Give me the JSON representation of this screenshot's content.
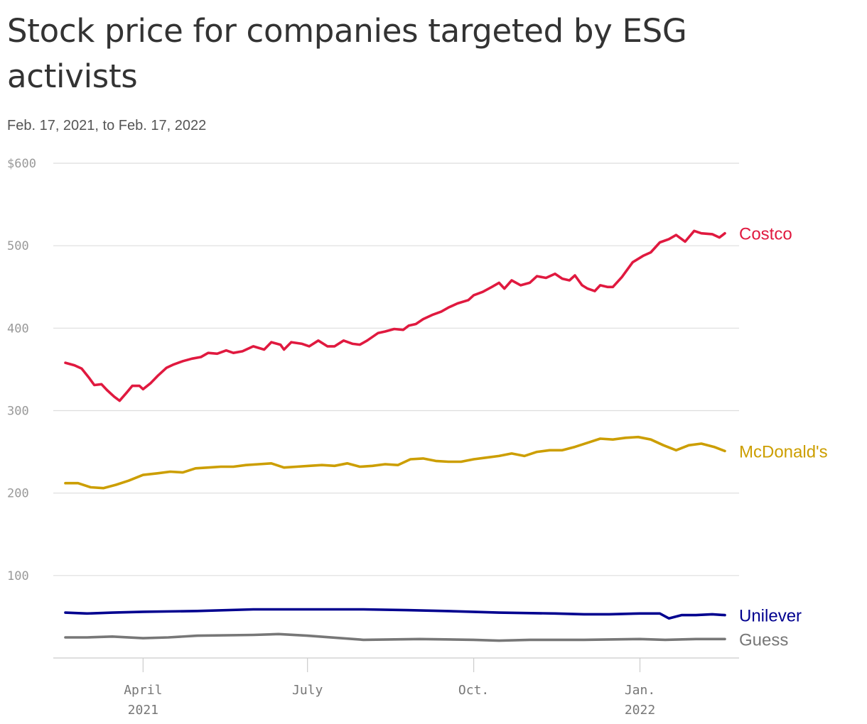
{
  "title": "Stock price for companies targeted by ESG activists",
  "subtitle": "Feb. 17, 2021, to Feb. 17, 2022",
  "chart_data": {
    "type": "line",
    "title": "Stock price for companies targeted by ESG activists",
    "subtitle": "Feb. 17, 2021, to Feb. 17, 2022",
    "xlim": [
      "2021-02-17",
      "2022-02-17"
    ],
    "ylim": [
      0,
      600
    ],
    "y_ticks": [
      {
        "value": 600,
        "label": "$600"
      },
      {
        "value": 500,
        "label": "500"
      },
      {
        "value": 400,
        "label": "400"
      },
      {
        "value": 300,
        "label": "300"
      },
      {
        "value": 200,
        "label": "200"
      },
      {
        "value": 100,
        "label": "100"
      }
    ],
    "x_ticks": [
      {
        "date": "2021-04-01",
        "line1": "April",
        "line2": "2021"
      },
      {
        "date": "2021-07-01",
        "line1": "July",
        "line2": ""
      },
      {
        "date": "2021-10-01",
        "line1": "Oct.",
        "line2": ""
      },
      {
        "date": "2022-01-01",
        "line1": "Jan.",
        "line2": "2022"
      }
    ],
    "grid": true,
    "legend": "direct labels at right end of lines",
    "series": [
      {
        "name": "Costco",
        "color": "#e0193f",
        "points": [
          [
            "2021-02-17",
            358
          ],
          [
            "2021-02-22",
            355
          ],
          [
            "2021-02-26",
            351
          ],
          [
            "2021-03-02",
            340
          ],
          [
            "2021-03-05",
            331
          ],
          [
            "2021-03-09",
            332
          ],
          [
            "2021-03-12",
            325
          ],
          [
            "2021-03-16",
            317
          ],
          [
            "2021-03-19",
            312
          ],
          [
            "2021-03-23",
            322
          ],
          [
            "2021-03-26",
            330
          ],
          [
            "2021-03-30",
            330
          ],
          [
            "2021-04-01",
            326
          ],
          [
            "2021-04-05",
            333
          ],
          [
            "2021-04-09",
            342
          ],
          [
            "2021-04-14",
            352
          ],
          [
            "2021-04-18",
            356
          ],
          [
            "2021-04-23",
            360
          ],
          [
            "2021-04-28",
            363
          ],
          [
            "2021-05-03",
            365
          ],
          [
            "2021-05-07",
            370
          ],
          [
            "2021-05-12",
            369
          ],
          [
            "2021-05-17",
            373
          ],
          [
            "2021-05-21",
            370
          ],
          [
            "2021-05-26",
            372
          ],
          [
            "2021-06-01",
            378
          ],
          [
            "2021-06-07",
            374
          ],
          [
            "2021-06-11",
            383
          ],
          [
            "2021-06-16",
            380
          ],
          [
            "2021-06-18",
            374
          ],
          [
            "2021-06-22",
            383
          ],
          [
            "2021-06-28",
            381
          ],
          [
            "2021-07-02",
            378
          ],
          [
            "2021-07-07",
            385
          ],
          [
            "2021-07-12",
            378
          ],
          [
            "2021-07-16",
            378
          ],
          [
            "2021-07-21",
            385
          ],
          [
            "2021-07-26",
            381
          ],
          [
            "2021-07-30",
            380
          ],
          [
            "2021-08-03",
            385
          ],
          [
            "2021-08-09",
            394
          ],
          [
            "2021-08-13",
            396
          ],
          [
            "2021-08-18",
            399
          ],
          [
            "2021-08-23",
            398
          ],
          [
            "2021-08-26",
            403
          ],
          [
            "2021-08-30",
            405
          ],
          [
            "2021-09-03",
            411
          ],
          [
            "2021-09-08",
            416
          ],
          [
            "2021-09-13",
            420
          ],
          [
            "2021-09-17",
            425
          ],
          [
            "2021-09-22",
            430
          ],
          [
            "2021-09-28",
            434
          ],
          [
            "2021-10-01",
            440
          ],
          [
            "2021-10-06",
            444
          ],
          [
            "2021-10-11",
            450
          ],
          [
            "2021-10-15",
            455
          ],
          [
            "2021-10-18",
            448
          ],
          [
            "2021-10-22",
            458
          ],
          [
            "2021-10-27",
            452
          ],
          [
            "2021-11-01",
            455
          ],
          [
            "2021-11-05",
            463
          ],
          [
            "2021-11-10",
            461
          ],
          [
            "2021-11-15",
            466
          ],
          [
            "2021-11-19",
            460
          ],
          [
            "2021-11-23",
            458
          ],
          [
            "2021-11-26",
            464
          ],
          [
            "2021-11-30",
            452
          ],
          [
            "2021-12-03",
            448
          ],
          [
            "2021-12-07",
            445
          ],
          [
            "2021-12-10",
            452
          ],
          [
            "2021-12-14",
            450
          ],
          [
            "2021-12-17",
            450
          ],
          [
            "2021-12-22",
            462
          ],
          [
            "2021-12-28",
            480
          ],
          [
            "2022-01-03",
            488
          ],
          [
            "2022-01-07",
            492
          ],
          [
            "2022-01-12",
            504
          ],
          [
            "2022-01-17",
            508
          ],
          [
            "2022-01-21",
            513
          ],
          [
            "2022-01-26",
            505
          ],
          [
            "2022-01-31",
            518
          ],
          [
            "2022-02-04",
            515
          ],
          [
            "2022-02-10",
            514
          ],
          [
            "2022-02-14",
            510
          ],
          [
            "2022-02-17",
            515
          ]
        ]
      },
      {
        "name": "McDonald's",
        "color": "#cc9e00",
        "points": [
          [
            "2021-02-17",
            212
          ],
          [
            "2021-02-24",
            212
          ],
          [
            "2021-03-03",
            207
          ],
          [
            "2021-03-10",
            206
          ],
          [
            "2021-03-17",
            210
          ],
          [
            "2021-03-24",
            215
          ],
          [
            "2021-04-01",
            222
          ],
          [
            "2021-04-09",
            224
          ],
          [
            "2021-04-16",
            226
          ],
          [
            "2021-04-23",
            225
          ],
          [
            "2021-04-30",
            230
          ],
          [
            "2021-05-07",
            231
          ],
          [
            "2021-05-14",
            232
          ],
          [
            "2021-05-21",
            232
          ],
          [
            "2021-05-28",
            234
          ],
          [
            "2021-06-04",
            235
          ],
          [
            "2021-06-11",
            236
          ],
          [
            "2021-06-18",
            231
          ],
          [
            "2021-06-25",
            232
          ],
          [
            "2021-07-02",
            233
          ],
          [
            "2021-07-09",
            234
          ],
          [
            "2021-07-16",
            233
          ],
          [
            "2021-07-23",
            236
          ],
          [
            "2021-07-30",
            232
          ],
          [
            "2021-08-06",
            233
          ],
          [
            "2021-08-13",
            235
          ],
          [
            "2021-08-20",
            234
          ],
          [
            "2021-08-27",
            241
          ],
          [
            "2021-09-03",
            242
          ],
          [
            "2021-09-10",
            239
          ],
          [
            "2021-09-17",
            238
          ],
          [
            "2021-09-24",
            238
          ],
          [
            "2021-10-01",
            241
          ],
          [
            "2021-10-08",
            243
          ],
          [
            "2021-10-15",
            245
          ],
          [
            "2021-10-22",
            248
          ],
          [
            "2021-10-29",
            245
          ],
          [
            "2021-11-05",
            250
          ],
          [
            "2021-11-12",
            252
          ],
          [
            "2021-11-19",
            252
          ],
          [
            "2021-11-26",
            256
          ],
          [
            "2021-12-03",
            261
          ],
          [
            "2021-12-10",
            266
          ],
          [
            "2021-12-17",
            265
          ],
          [
            "2021-12-24",
            267
          ],
          [
            "2021-12-31",
            268
          ],
          [
            "2022-01-07",
            265
          ],
          [
            "2022-01-14",
            258
          ],
          [
            "2022-01-21",
            252
          ],
          [
            "2022-01-28",
            258
          ],
          [
            "2022-02-04",
            260
          ],
          [
            "2022-02-11",
            256
          ],
          [
            "2022-02-17",
            251
          ]
        ]
      },
      {
        "name": "Unilever",
        "color": "#00008f",
        "points": [
          [
            "2021-02-17",
            55
          ],
          [
            "2021-03-01",
            54
          ],
          [
            "2021-03-15",
            55
          ],
          [
            "2021-04-01",
            56
          ],
          [
            "2021-05-01",
            57
          ],
          [
            "2021-06-01",
            59
          ],
          [
            "2021-07-01",
            59
          ],
          [
            "2021-08-01",
            59
          ],
          [
            "2021-08-25",
            58
          ],
          [
            "2021-09-15",
            57
          ],
          [
            "2021-10-15",
            55
          ],
          [
            "2021-11-15",
            54
          ],
          [
            "2021-12-01",
            53
          ],
          [
            "2021-12-15",
            53
          ],
          [
            "2022-01-01",
            54
          ],
          [
            "2022-01-12",
            54
          ],
          [
            "2022-01-17",
            48
          ],
          [
            "2022-01-24",
            52
          ],
          [
            "2022-02-01",
            52
          ],
          [
            "2022-02-10",
            53
          ],
          [
            "2022-02-17",
            52
          ]
        ]
      },
      {
        "name": "Guess",
        "color": "#777777",
        "points": [
          [
            "2021-02-17",
            25
          ],
          [
            "2021-03-01",
            25
          ],
          [
            "2021-03-15",
            26
          ],
          [
            "2021-04-01",
            24
          ],
          [
            "2021-04-15",
            25
          ],
          [
            "2021-05-01",
            27
          ],
          [
            "2021-06-01",
            28
          ],
          [
            "2021-06-15",
            29
          ],
          [
            "2021-07-01",
            27
          ],
          [
            "2021-08-01",
            22
          ],
          [
            "2021-09-01",
            23
          ],
          [
            "2021-10-01",
            22
          ],
          [
            "2021-10-15",
            21
          ],
          [
            "2021-11-01",
            22
          ],
          [
            "2021-12-01",
            22
          ],
          [
            "2022-01-01",
            23
          ],
          [
            "2022-01-15",
            22
          ],
          [
            "2022-02-01",
            23
          ],
          [
            "2022-02-17",
            23
          ]
        ]
      }
    ]
  }
}
